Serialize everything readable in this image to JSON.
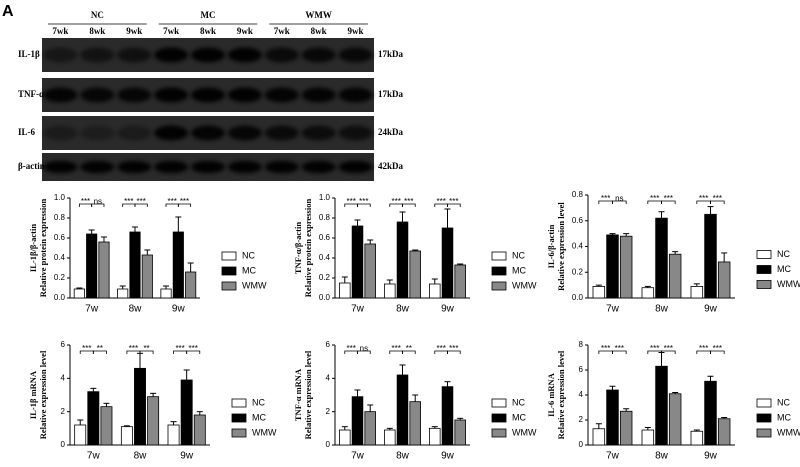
{
  "blot": {
    "panel": "A",
    "groups": [
      {
        "name": "NC",
        "times": [
          "7wk",
          "8wk",
          "9wk"
        ]
      },
      {
        "name": "MC",
        "times": [
          "7wk",
          "8wk",
          "9wk"
        ]
      },
      {
        "name": "WMW",
        "times": [
          "7wk",
          "8wk",
          "9wk"
        ]
      }
    ],
    "rows": [
      {
        "label": "IL-1β",
        "size": "17kDa"
      },
      {
        "label": "TNF-α",
        "size": "17kDa"
      },
      {
        "label": "IL-6",
        "size": "24kDa"
      },
      {
        "label": "β-actin",
        "size": "42kDa"
      }
    ]
  },
  "chart_data": [
    {
      "type": "bar",
      "ylabel": [
        "IL-1β/β-actin",
        "Relative protein expression"
      ],
      "categories": [
        "7w",
        "8w",
        "9w"
      ],
      "series": [
        {
          "name": "NC",
          "color": "#ffffff",
          "values": [
            0.09,
            0.09,
            0.09
          ],
          "errors": [
            0.01,
            0.03,
            0.03
          ]
        },
        {
          "name": "MC",
          "color": "#000000",
          "values": [
            0.64,
            0.66,
            0.66
          ],
          "errors": [
            0.04,
            0.05,
            0.15
          ]
        },
        {
          "name": "WMW",
          "color": "#888888",
          "values": [
            0.56,
            0.43,
            0.26
          ],
          "errors": [
            0.05,
            0.05,
            0.09
          ]
        }
      ],
      "annotations": [
        [
          "***",
          "ns"
        ],
        [
          "***",
          "***"
        ],
        [
          "***",
          "***"
        ]
      ],
      "ylim": [
        0,
        1
      ],
      "yticks": [
        {
          "value": 0,
          "label": "0.0"
        },
        0.2,
        0.4,
        0.6,
        0.8,
        {
          "value": 1,
          "label": "1.0"
        }
      ]
    },
    {
      "type": "bar",
      "ylabel": [
        "TNF-α/β-actin",
        "Relative protein expression"
      ],
      "categories": [
        "7w",
        "8w",
        "9w"
      ],
      "series": [
        {
          "name": "NC",
          "color": "#ffffff",
          "values": [
            0.15,
            0.14,
            0.14
          ],
          "errors": [
            0.06,
            0.04,
            0.05
          ]
        },
        {
          "name": "MC",
          "color": "#000000",
          "values": [
            0.72,
            0.76,
            0.7
          ],
          "errors": [
            0.06,
            0.1,
            0.19
          ]
        },
        {
          "name": "WMW",
          "color": "#888888",
          "values": [
            0.54,
            0.47,
            0.33
          ],
          "errors": [
            0.04,
            0.01,
            0.01
          ]
        }
      ],
      "annotations": [
        [
          "***",
          "***"
        ],
        [
          "***",
          "***"
        ],
        [
          "***",
          "***"
        ]
      ],
      "ylim": [
        0,
        1
      ],
      "yticks": [
        {
          "value": 0,
          "label": "0.0"
        },
        0.2,
        0.4,
        0.6,
        0.8,
        {
          "value": 1,
          "label": "1.0"
        }
      ]
    },
    {
      "type": "bar",
      "ylabel": [
        "IL-6/β-actin",
        "Relative expression level"
      ],
      "categories": [
        "7w",
        "8w",
        "9w"
      ],
      "series": [
        {
          "name": "NC",
          "color": "#ffffff",
          "values": [
            0.09,
            0.08,
            0.09
          ],
          "errors": [
            0.01,
            0.01,
            0.02
          ]
        },
        {
          "name": "MC",
          "color": "#000000",
          "values": [
            0.49,
            0.62,
            0.65
          ],
          "errors": [
            0.01,
            0.05,
            0.06
          ]
        },
        {
          "name": "WMW",
          "color": "#888888",
          "values": [
            0.48,
            0.34,
            0.28
          ],
          "errors": [
            0.02,
            0.02,
            0.07
          ]
        }
      ],
      "annotations": [
        [
          "***",
          "ns"
        ],
        [
          "***",
          "***"
        ],
        [
          "***",
          "***"
        ]
      ],
      "ylim": [
        0,
        0.8
      ],
      "yticks": [
        {
          "value": 0,
          "label": "0.0"
        },
        0.2,
        0.4,
        0.6,
        0.8
      ]
    },
    {
      "type": "bar",
      "ylabel": [
        "IL-1β mRNA",
        "Relative expression level"
      ],
      "categories": [
        "7w",
        "8w",
        "9w"
      ],
      "series": [
        {
          "name": "NC",
          "color": "#ffffff",
          "values": [
            1.2,
            1.1,
            1.2
          ],
          "errors": [
            0.3,
            0.05,
            0.2
          ]
        },
        {
          "name": "MC",
          "color": "#000000",
          "values": [
            3.2,
            4.6,
            3.9
          ],
          "errors": [
            0.2,
            0.9,
            0.6
          ]
        },
        {
          "name": "WMW",
          "color": "#888888",
          "values": [
            2.3,
            2.9,
            1.8
          ],
          "errors": [
            0.2,
            0.2,
            0.2
          ]
        }
      ],
      "annotations": [
        [
          "***",
          "**"
        ],
        [
          "***",
          "**"
        ],
        [
          "***",
          "***"
        ]
      ],
      "ylim": [
        0,
        6
      ],
      "yticks": [
        0,
        2,
        4,
        6
      ]
    },
    {
      "type": "bar",
      "ylabel": [
        "TNF-α mRNA",
        "Relative expression level"
      ],
      "categories": [
        "7w",
        "8w",
        "9w"
      ],
      "series": [
        {
          "name": "NC",
          "color": "#ffffff",
          "values": [
            0.9,
            0.9,
            1
          ],
          "errors": [
            0.2,
            0.1,
            0.1
          ]
        },
        {
          "name": "MC",
          "color": "#000000",
          "values": [
            2.9,
            4.2,
            3.5
          ],
          "errors": [
            0.4,
            0.6,
            0.3
          ]
        },
        {
          "name": "WMW",
          "color": "#888888",
          "values": [
            2,
            2.6,
            1.5
          ],
          "errors": [
            0.4,
            0.4,
            0.1
          ]
        }
      ],
      "annotations": [
        [
          "***",
          "ns"
        ],
        [
          "***",
          "**"
        ],
        [
          "***",
          "***"
        ]
      ],
      "ylim": [
        0,
        6
      ],
      "yticks": [
        0,
        2,
        4,
        6
      ]
    },
    {
      "type": "bar",
      "ylabel": [
        "IL-6 mRNA",
        "Relative expression level"
      ],
      "categories": [
        "7w",
        "8w",
        "9w"
      ],
      "series": [
        {
          "name": "NC",
          "color": "#ffffff",
          "values": [
            1.3,
            1.2,
            1.1
          ],
          "errors": [
            0.4,
            0.2,
            0.1
          ]
        },
        {
          "name": "MC",
          "color": "#000000",
          "values": [
            4.4,
            6.3,
            5.1
          ],
          "errors": [
            0.3,
            1.1,
            0.4
          ]
        },
        {
          "name": "WMW",
          "color": "#888888",
          "values": [
            2.7,
            4.1,
            2.1
          ],
          "errors": [
            0.2,
            0.1,
            0.1
          ]
        }
      ],
      "annotations": [
        [
          "***",
          "***"
        ],
        [
          "***",
          "***"
        ],
        [
          "***",
          "***"
        ]
      ],
      "ylim": [
        0,
        8
      ],
      "yticks": [
        0,
        2,
        4,
        6,
        8
      ]
    }
  ]
}
